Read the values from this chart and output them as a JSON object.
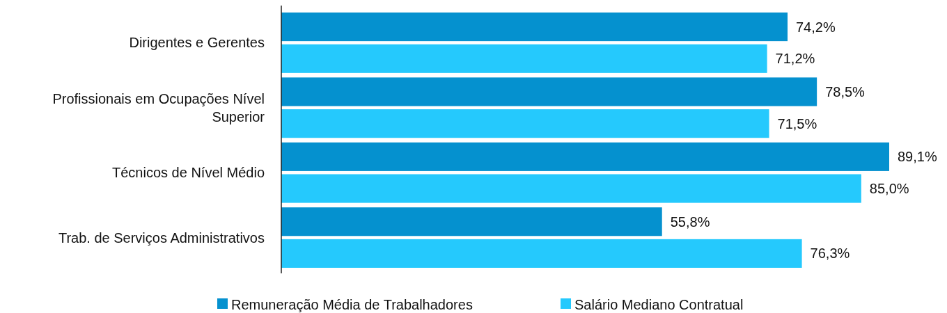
{
  "chart_data": {
    "type": "bar",
    "orientation": "horizontal",
    "categories": [
      "Dirigentes e Gerentes",
      "Profissionais em Ocupações Nível Superior",
      "Técnicos de Nível Médio",
      "Trab. de Serviços Administrativos"
    ],
    "series": [
      {
        "name": "Remuneração Média de Trabalhadores",
        "color": "#0591cf",
        "values": [
          74.2,
          78.5,
          89.1,
          55.8
        ],
        "value_labels": [
          "74,2%",
          "78,5%",
          "89,1%",
          "55,8%"
        ]
      },
      {
        "name": "Salário Mediano Contratual",
        "color": "#25c9fd",
        "values": [
          71.2,
          71.5,
          85.0,
          76.3
        ],
        "value_labels": [
          "71,2%",
          "71,5%",
          "85,0%",
          "76,3%"
        ]
      }
    ],
    "legend": "bottom"
  }
}
